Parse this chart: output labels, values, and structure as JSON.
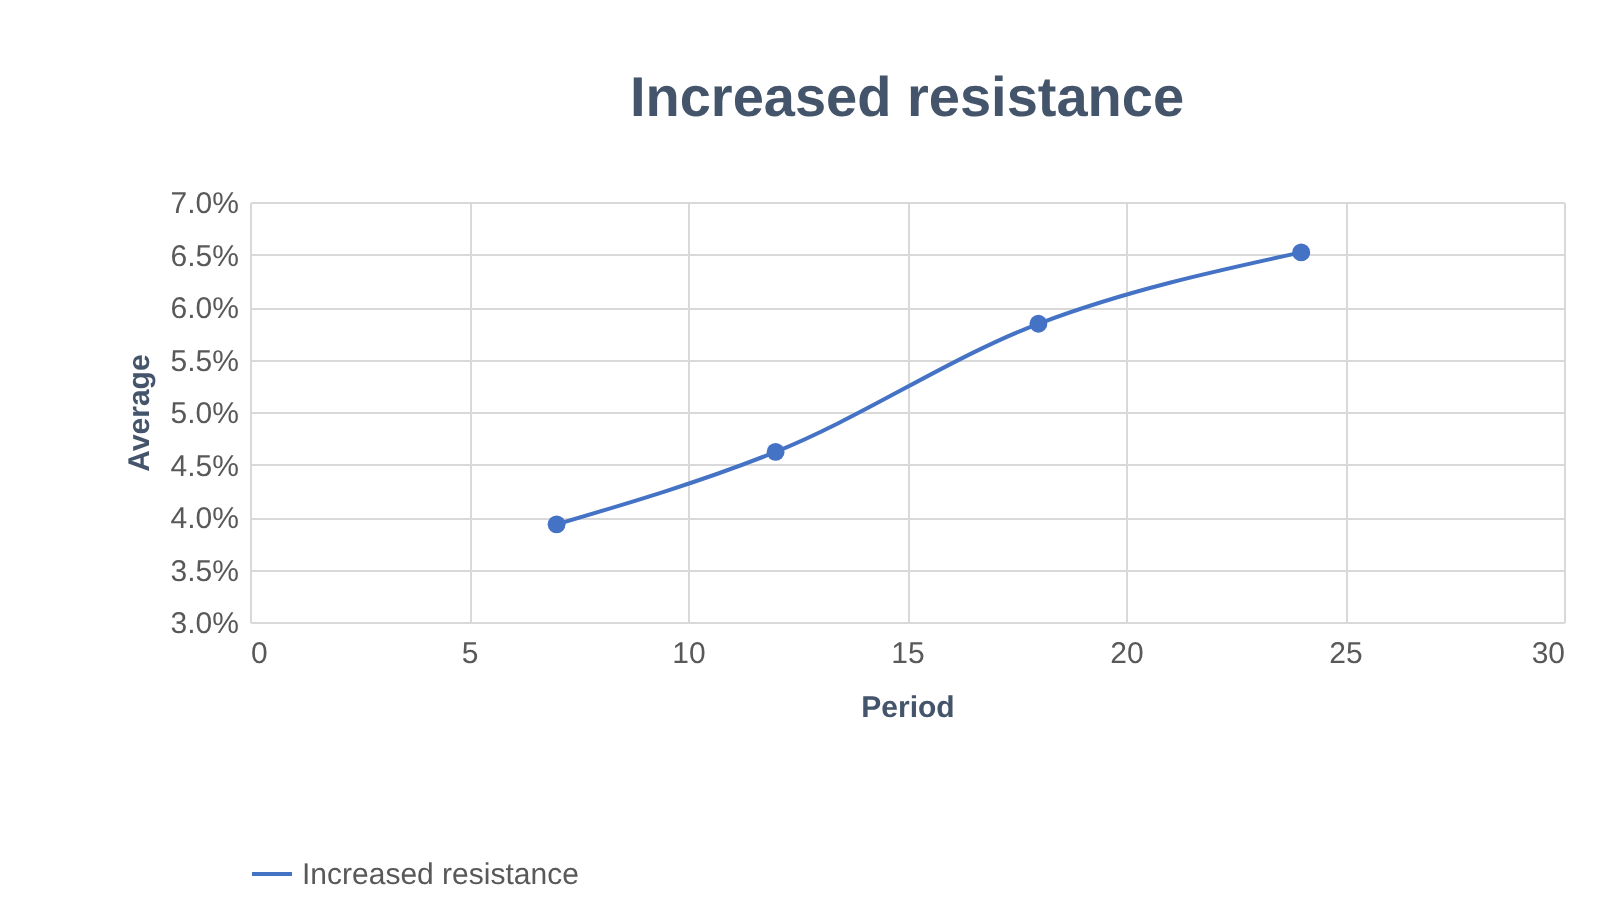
{
  "chart_data": {
    "type": "line",
    "title": "Increased resistance",
    "xlabel": "Period",
    "ylabel": "Average",
    "x": [
      7,
      12,
      18,
      24
    ],
    "series": [
      {
        "name": "Increased resistance",
        "color": "#4472c4",
        "values": [
          3.93,
          4.62,
          5.84,
          6.52
        ]
      }
    ],
    "xlim": [
      0,
      30
    ],
    "xticks": [
      0,
      5,
      10,
      15,
      20,
      25,
      30
    ],
    "ylim": [
      3,
      7
    ],
    "yticks": [
      {
        "value": 3,
        "label": "3.0%"
      },
      {
        "value": 3.5,
        "label": "3.5%"
      },
      {
        "value": 4,
        "label": "4.0%"
      },
      {
        "value": 4.5,
        "label": "4.5%"
      },
      {
        "value": 5,
        "label": "5.0%"
      },
      {
        "value": 5.5,
        "label": "5.5%"
      },
      {
        "value": 6,
        "label": "6.0%"
      },
      {
        "value": 6.5,
        "label": "6.5%"
      },
      {
        "value": 7,
        "label": "7.0%"
      }
    ],
    "grid": true,
    "legend": "bottom",
    "marker": "circle",
    "line_style": "solid"
  }
}
